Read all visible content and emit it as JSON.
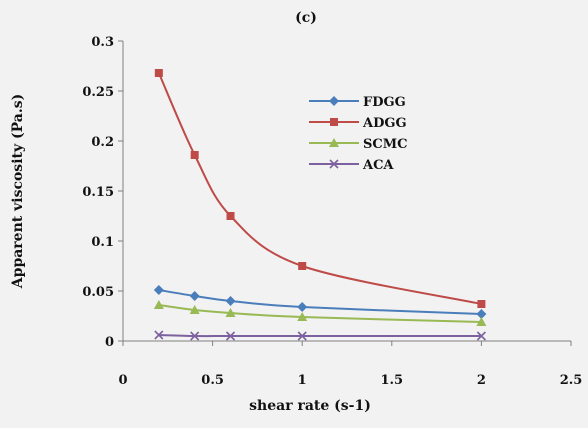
{
  "chart_data": {
    "type": "line",
    "title": "(c)",
    "xlabel": "shear rate (s-1)",
    "ylabel": "Apparent viscosity (Pa.s)",
    "xlim": [
      0,
      2.5
    ],
    "ylim": [
      0,
      0.3
    ],
    "x_ticks": [
      "0",
      "0.5",
      "1",
      "1.5",
      "2",
      "2.5"
    ],
    "y_ticks": [
      "0",
      "0.05",
      "0.1",
      "0.15",
      "0.2",
      "0.25",
      "0.3"
    ],
    "grid": false,
    "legend_position": "right",
    "x": [
      0.2,
      0.4,
      0.6,
      1.0,
      2.0
    ],
    "series": [
      {
        "name": "FDGG",
        "values": [
          0.051,
          0.045,
          0.04,
          0.034,
          0.027
        ],
        "color": "#4a7ebb",
        "marker": "diamond"
      },
      {
        "name": "ADGG",
        "values": [
          0.268,
          0.186,
          0.125,
          0.075,
          0.037
        ],
        "color": "#be4b48",
        "marker": "square"
      },
      {
        "name": "SCMC",
        "values": [
          0.036,
          0.031,
          0.028,
          0.024,
          0.019
        ],
        "color": "#98b954",
        "marker": "triangle"
      },
      {
        "name": "ACA",
        "values": [
          0.006,
          0.005,
          0.005,
          0.005,
          0.005
        ],
        "color": "#7d60a0",
        "marker": "x"
      }
    ]
  }
}
